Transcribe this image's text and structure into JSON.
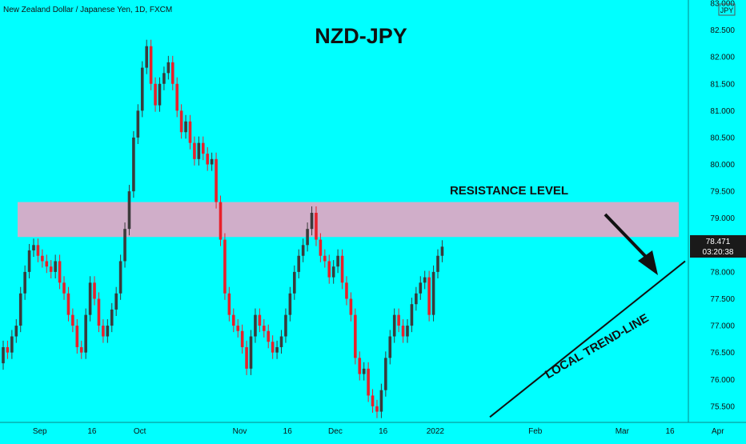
{
  "header": {
    "symbol_info": "New Zealand Dollar / Japanese Yen, 1D, FXCM",
    "currency_badge": "JPY"
  },
  "annotations": {
    "title": "NZD-JPY",
    "resistance_label": "RESISTANCE LEVEL",
    "trendline_label": "LOCAL TREND-LINE"
  },
  "price_tag": {
    "price": "78.471",
    "countdown": "03:20:38"
  },
  "colors": {
    "background": "#00ffff",
    "bull": "#3a3a3a",
    "bear": "#e8202a",
    "zone": "#f4a0c0",
    "tag_bg": "#1a1a1a"
  },
  "chart_data": {
    "type": "candlestick",
    "y_axis": {
      "min": 75.2,
      "max": 83.0,
      "ticks": [
        "75.500",
        "76.000",
        "76.500",
        "77.000",
        "77.500",
        "78.000",
        "78.500",
        "79.000",
        "79.500",
        "80.000",
        "80.500",
        "81.000",
        "81.500",
        "82.000",
        "82.500",
        "83.000"
      ]
    },
    "x_axis": {
      "ticks": [
        {
          "label": "Sep",
          "index": 4
        },
        {
          "label": "16",
          "index": 16
        },
        {
          "label": "Oct",
          "index": 27
        },
        {
          "label": "Nov",
          "index": 50
        },
        {
          "label": "16",
          "index": 61
        },
        {
          "label": "Dec",
          "index": 72
        },
        {
          "label": "16",
          "index": 83
        },
        {
          "label": "2022",
          "index": 95
        },
        {
          "label": "Feb",
          "index": 118
        },
        {
          "label": "Mar",
          "index": 138
        },
        {
          "label": "16",
          "index": 149
        },
        {
          "label": "Apr",
          "index": 160
        }
      ]
    },
    "resistance_zone": [
      78.65,
      79.3
    ],
    "trendline": {
      "start": {
        "index": 112,
        "price": 75.3
      },
      "end": {
        "index": 160,
        "price": 78.2
      }
    },
    "closes": [
      76.6,
      76.5,
      76.8,
      77.0,
      77.6,
      78.0,
      78.4,
      78.5,
      78.3,
      78.2,
      78.1,
      78.0,
      78.2,
      77.8,
      77.6,
      77.2,
      77.0,
      76.6,
      76.5,
      77.2,
      77.8,
      77.5,
      77.0,
      76.8,
      77.0,
      77.3,
      77.6,
      78.2,
      78.8,
      79.5,
      80.5,
      81.0,
      81.8,
      82.2,
      81.5,
      81.1,
      81.5,
      81.7,
      81.9,
      81.5,
      81.0,
      80.6,
      80.8,
      80.4,
      80.1,
      80.4,
      80.2,
      80.0,
      80.1,
      79.3,
      78.6,
      77.6,
      77.2,
      77.0,
      76.9,
      76.6,
      76.2,
      76.8,
      77.2,
      77.0,
      76.9,
      76.7,
      76.5,
      76.6,
      76.8,
      77.2,
      77.6,
      78.0,
      78.3,
      78.5,
      78.8,
      79.1,
      78.6,
      78.3,
      78.2,
      77.9,
      78.1,
      78.3,
      77.8,
      77.5,
      77.2,
      76.4,
      76.1,
      76.2,
      75.7,
      75.5,
      75.4,
      75.8,
      76.4,
      76.8,
      77.2,
      77.0,
      76.8,
      77.0,
      77.4,
      77.6,
      77.8,
      77.9,
      77.2,
      78.0,
      78.3,
      78.47
    ],
    "opens": [
      76.3,
      76.6,
      76.5,
      76.8,
      77.0,
      77.6,
      78.0,
      78.4,
      78.5,
      78.3,
      78.2,
      78.1,
      78.0,
      78.2,
      77.8,
      77.6,
      77.2,
      77.0,
      76.6,
      76.5,
      77.2,
      77.8,
      77.5,
      77.0,
      76.8,
      77.0,
      77.3,
      77.6,
      78.2,
      78.8,
      79.5,
      80.5,
      81.0,
      81.8,
      82.2,
      81.5,
      81.1,
      81.5,
      81.7,
      81.9,
      81.5,
      81.0,
      80.6,
      80.8,
      80.4,
      80.1,
      80.4,
      80.2,
      80.0,
      80.1,
      79.3,
      78.6,
      77.6,
      77.2,
      77.0,
      76.9,
      76.6,
      76.2,
      76.8,
      77.2,
      77.0,
      76.9,
      76.7,
      76.5,
      76.6,
      76.8,
      77.2,
      77.6,
      78.0,
      78.3,
      78.5,
      78.8,
      79.1,
      78.6,
      78.3,
      78.2,
      77.9,
      78.1,
      78.3,
      77.8,
      77.5,
      77.2,
      76.4,
      76.1,
      76.2,
      75.7,
      75.5,
      75.4,
      75.8,
      76.4,
      76.8,
      77.2,
      77.0,
      76.8,
      77.0,
      77.4,
      77.6,
      77.8,
      77.9,
      77.2,
      78.0,
      78.3
    ]
  }
}
